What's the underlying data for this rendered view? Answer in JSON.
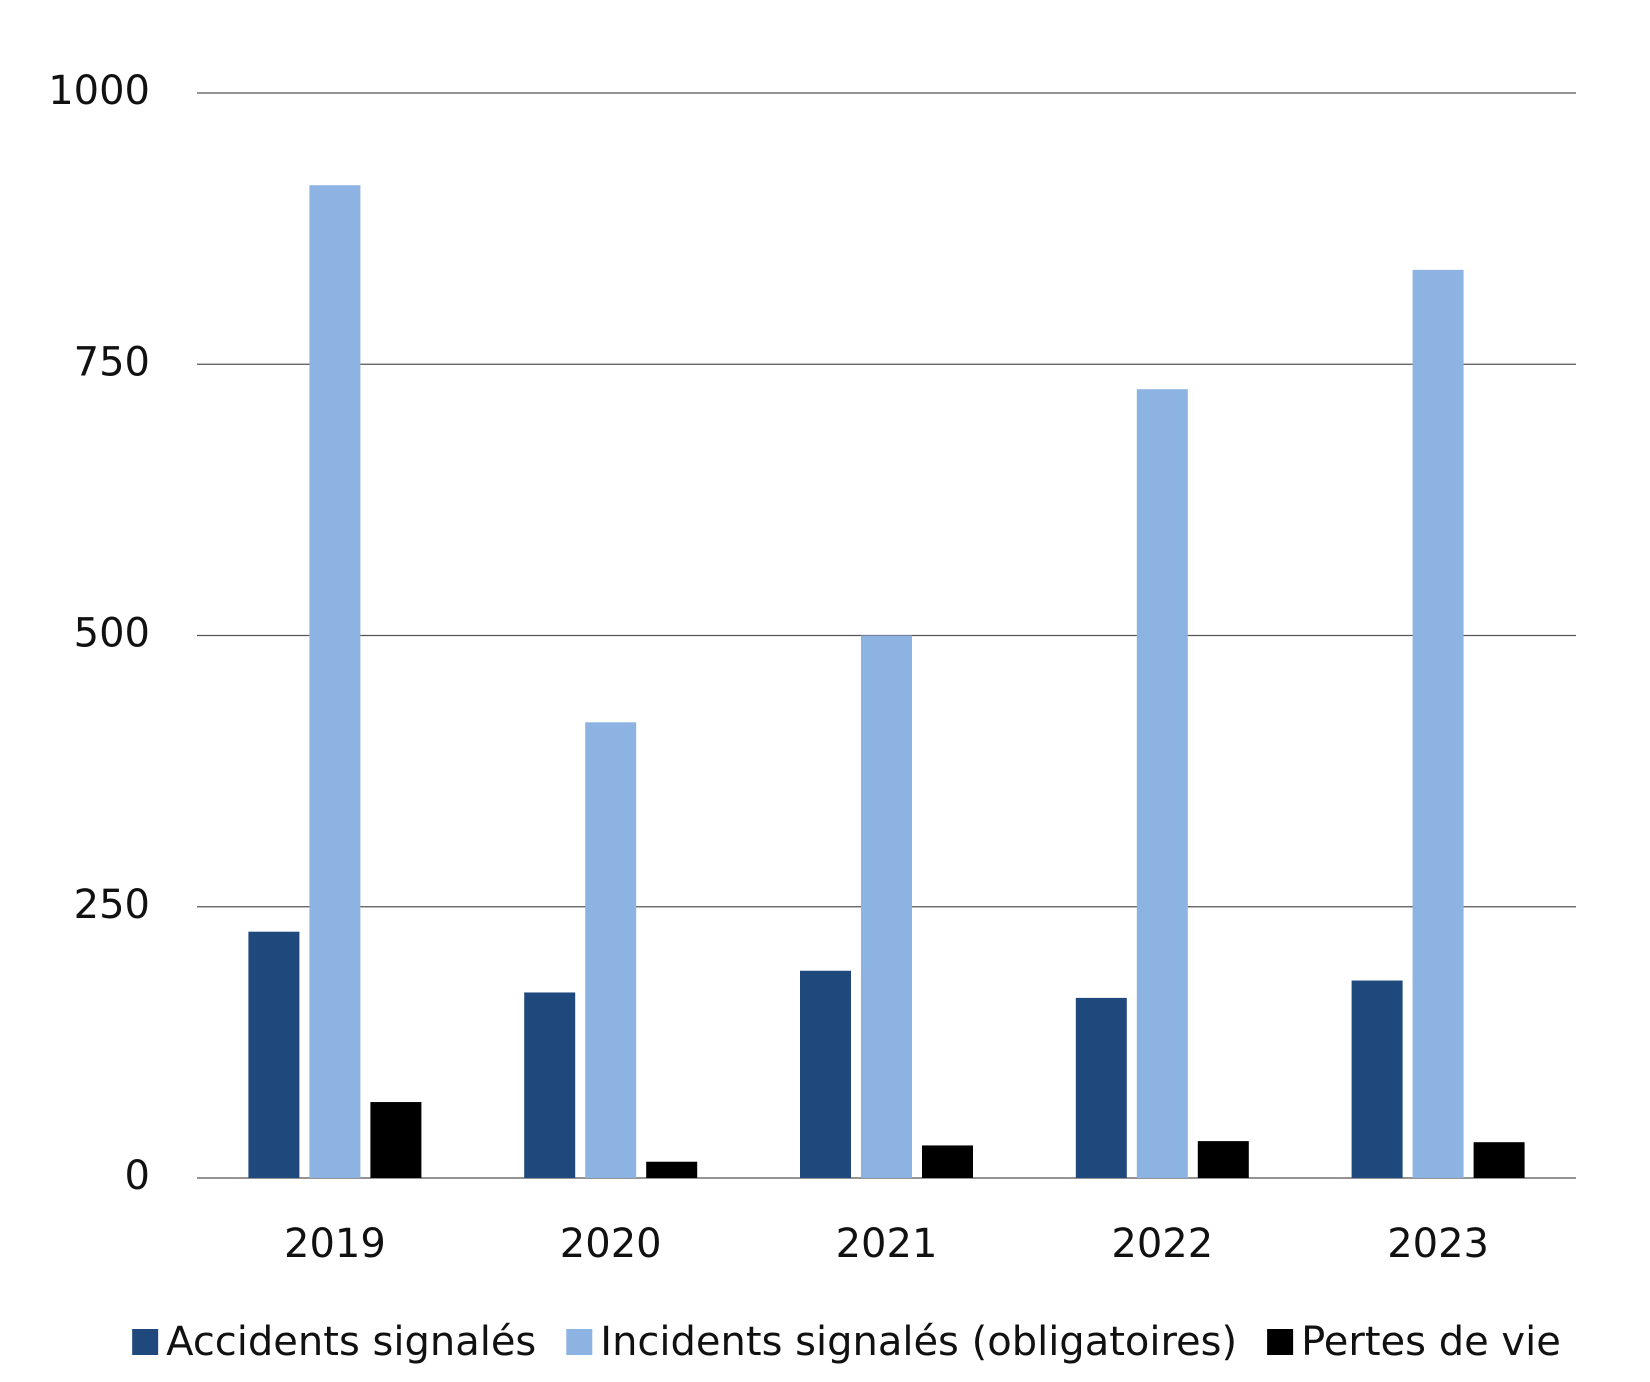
{
  "chart_data": {
    "type": "bar",
    "categories": [
      "2019",
      "2020",
      "2021",
      "2022",
      "2023"
    ],
    "series": [
      {
        "name": "Accidents signalés",
        "color": "#1f497d",
        "values": [
          227,
          171,
          191,
          166,
          182
        ]
      },
      {
        "name": "Incidents signalés (obligatoires)",
        "color": "#8db3e2",
        "values": [
          915,
          420,
          500,
          727,
          837
        ]
      },
      {
        "name": "Pertes de vie",
        "color": "#000000",
        "values": [
          70,
          15,
          30,
          34,
          33
        ]
      }
    ],
    "ylim": [
      0,
      1000
    ],
    "yticks": [
      0,
      250,
      500,
      750,
      1000
    ],
    "grid": true,
    "legend": "bottom"
  }
}
